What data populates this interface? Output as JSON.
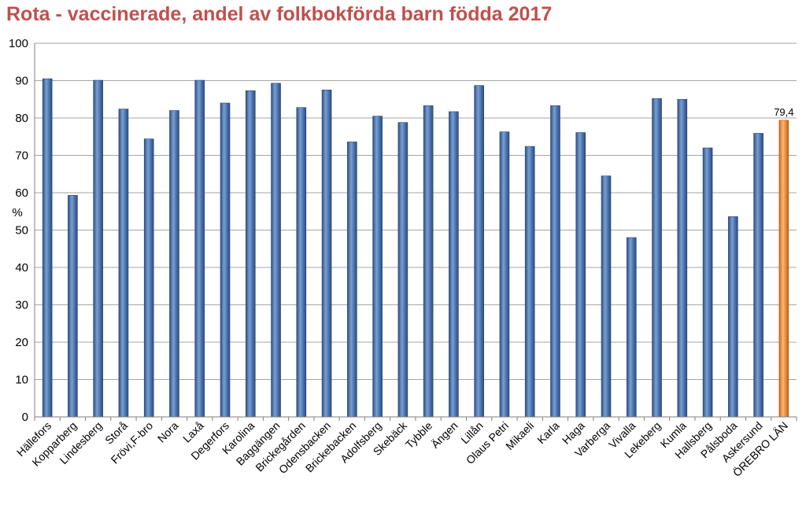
{
  "chart_data": {
    "type": "bar",
    "title": "Rota - vaccinerade, andel av folkbokförda barn födda 2017",
    "xlabel": "",
    "ylabel": "%",
    "ylim": [
      0,
      100
    ],
    "yticks": [
      0,
      10,
      20,
      30,
      40,
      50,
      60,
      70,
      80,
      90,
      100
    ],
    "grid": true,
    "legend": "none",
    "categories": [
      "Hällefors",
      "Kopparberg",
      "Lindesberg",
      "Storå",
      "Frövi,F-bro",
      "Nora",
      "Laxå",
      "Degerfors",
      "Karolina",
      "Baggängen",
      "Brickegården",
      "Odensbacken",
      "Brickebacken",
      "Adolfsberg",
      "Skebäck",
      "Tybble",
      "Ängen",
      "Lillån",
      "Olaus Petri",
      "Mikaeli",
      "Karla",
      "Haga",
      "Varberga",
      "Vivalla",
      "Lekeberg",
      "Kumla",
      "Hallsberg",
      "Pålsboda",
      "Askersund",
      "ÖREBRO LÄN"
    ],
    "values": [
      90.5,
      59.3,
      90.1,
      82.4,
      74.4,
      82.0,
      90.1,
      84.0,
      87.3,
      89.3,
      82.8,
      87.5,
      73.6,
      80.5,
      78.8,
      83.3,
      81.7,
      88.7,
      76.3,
      72.4,
      83.3,
      76.1,
      64.5,
      48.0,
      85.2,
      85.0,
      72.0,
      53.6,
      75.9,
      79.4
    ],
    "highlight_index": 29,
    "data_labels": [
      {
        "index": 29,
        "text": "79,4"
      }
    ],
    "colors": {
      "bar": "#4f81bd",
      "highlight": "#f79646",
      "grid": "#a6a6a6",
      "title": "#c0504d"
    }
  }
}
